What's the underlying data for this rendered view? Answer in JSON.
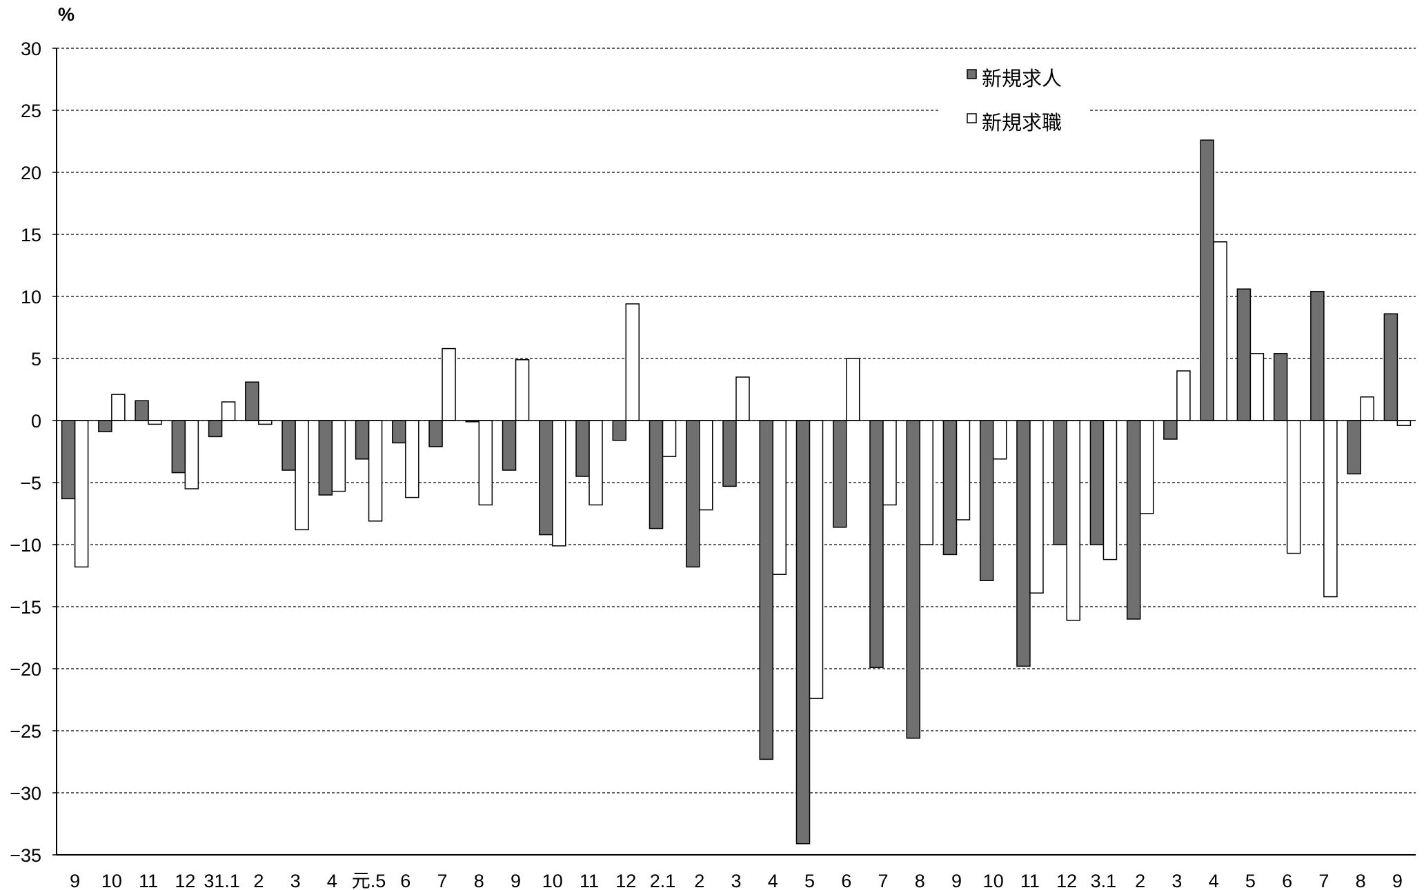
{
  "chart_data": {
    "type": "bar",
    "title": "",
    "unit_label": "%",
    "xlabel": "",
    "ylabel": "",
    "ylim": [
      -35,
      30
    ],
    "yticks": [
      30,
      25,
      20,
      15,
      10,
      5,
      0,
      -5,
      -10,
      -15,
      -20,
      -25,
      -30,
      -35
    ],
    "grid": true,
    "legend_position": "top-right",
    "categories": [
      "9",
      "10",
      "11",
      "12",
      "31.1",
      "2",
      "3",
      "4",
      "元.5",
      "6",
      "7",
      "8",
      "9",
      "10",
      "11",
      "12",
      "2.1",
      "2",
      "3",
      "4",
      "5",
      "6",
      "7",
      "8",
      "9",
      "10",
      "11",
      "12",
      "3.1",
      "2",
      "3",
      "4",
      "5",
      "6",
      "7",
      "8",
      "9"
    ],
    "series": [
      {
        "name": "新規求人",
        "color": "#707070",
        "values": [
          -6.3,
          -0.9,
          1.6,
          -4.2,
          -1.3,
          3.1,
          -4.0,
          -6.0,
          -3.1,
          -1.8,
          -2.1,
          -0.1,
          -4.0,
          -9.2,
          -4.5,
          -1.6,
          -8.7,
          -11.8,
          -5.3,
          -27.3,
          -34.1,
          -8.6,
          -19.9,
          -25.6,
          -10.8,
          -12.9,
          -19.8,
          -10.0,
          -10.0,
          -16.0,
          -1.5,
          22.6,
          10.6,
          5.4,
          10.4,
          -4.3,
          8.6
        ]
      },
      {
        "name": "新規求職",
        "color": "#ffffff",
        "values": [
          -11.8,
          2.1,
          -0.3,
          -5.5,
          1.5,
          -0.3,
          -8.8,
          -5.7,
          -8.1,
          -6.2,
          5.8,
          -6.8,
          4.9,
          -10.1,
          -6.8,
          9.4,
          -2.9,
          -7.2,
          3.5,
          -12.4,
          -22.4,
          5.0,
          -6.8,
          -10.0,
          -8.0,
          -3.1,
          -13.9,
          -16.1,
          -11.2,
          -7.5,
          4.0,
          14.4,
          5.4,
          -10.7,
          -14.2,
          1.9,
          -0.4
        ]
      }
    ]
  }
}
